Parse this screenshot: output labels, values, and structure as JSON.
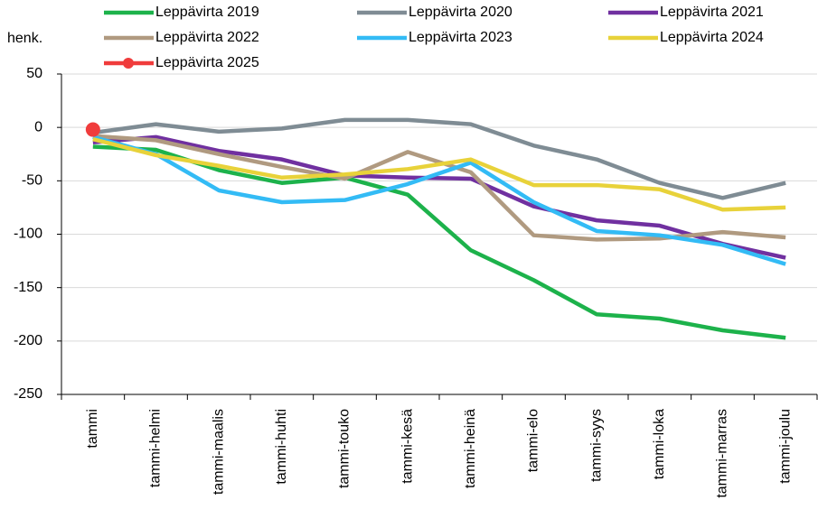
{
  "chart_data": {
    "type": "line",
    "y_label": "henk.",
    "categories": [
      "tammi",
      "tammi-helmi",
      "tammi-maalis",
      "tammi-huhti",
      "tammi-touko",
      "tammi-kesä",
      "tammi-heinä",
      "tammi-elo",
      "tammi-syys",
      "tammi-loka",
      "tammi-marras",
      "tammi-joulu"
    ],
    "ylim": [
      -250,
      50
    ],
    "yticks": [
      -250,
      -200,
      -150,
      -100,
      -50,
      0,
      50
    ],
    "grid": true,
    "series": [
      {
        "name": "Leppävirta 2019",
        "color": "#1db24b",
        "values": [
          -18,
          -21,
          -40,
          -52,
          -47,
          -63,
          -115,
          -143,
          -175,
          -179,
          -190,
          -197
        ]
      },
      {
        "name": "Leppävirta 2020",
        "color": "#7f8c94",
        "values": [
          -5,
          3,
          -4,
          -1,
          7,
          7,
          3,
          -17,
          -30,
          -52,
          -66,
          -52
        ]
      },
      {
        "name": "Leppävirta 2021",
        "color": "#7030a0",
        "values": [
          -14,
          -9,
          -22,
          -30,
          -45,
          -47,
          -48,
          -74,
          -87,
          -92,
          -109,
          -122
        ]
      },
      {
        "name": "Leppävirta 2022",
        "color": "#b09a80",
        "values": [
          -8,
          -12,
          -25,
          -37,
          -48,
          -23,
          -42,
          -101,
          -105,
          -104,
          -98,
          -103
        ]
      },
      {
        "name": "Leppävirta 2023",
        "color": "#33bbf5",
        "values": [
          -9,
          -25,
          -59,
          -70,
          -68,
          -53,
          -33,
          -70,
          -97,
          -101,
          -110,
          -128
        ]
      },
      {
        "name": "Leppävirta 2024",
        "color": "#e8d23a",
        "values": [
          -11,
          -26,
          -36,
          -47,
          -44,
          -39,
          -30,
          -54,
          -54,
          -58,
          -77,
          -75
        ]
      },
      {
        "name": "Leppävirta 2025",
        "color": "#f03c3c",
        "marker": true,
        "values": [
          -2,
          null,
          null,
          null,
          null,
          null,
          null,
          null,
          null,
          null,
          null,
          null
        ]
      }
    ]
  }
}
